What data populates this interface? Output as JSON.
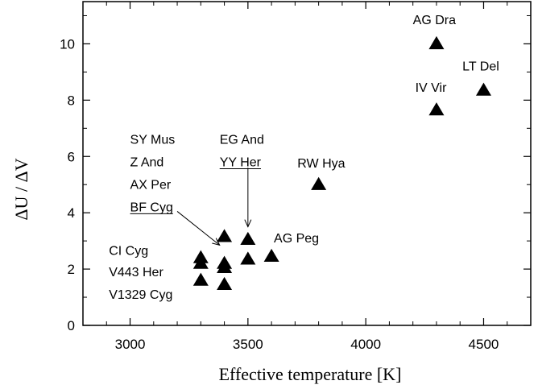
{
  "chart_data": {
    "type": "scatter",
    "title": "",
    "xlabel": "Effective temperature [K]",
    "ylabel": "ΔU / ΔV",
    "xlim": [
      2800,
      4700
    ],
    "ylim": [
      0,
      11.5
    ],
    "x_ticks": [
      3000,
      3500,
      4000,
      4500
    ],
    "y_ticks": [
      0,
      2,
      4,
      6,
      8,
      10
    ],
    "grid": false,
    "legend": "none",
    "marker": "filled-triangle",
    "color": "#000000",
    "points": [
      {
        "x": 3300,
        "y": 2.4
      },
      {
        "x": 3300,
        "y": 2.2
      },
      {
        "x": 3300,
        "y": 1.6
      },
      {
        "x": 3400,
        "y": 3.15
      },
      {
        "x": 3400,
        "y": 2.2
      },
      {
        "x": 3400,
        "y": 2.05
      },
      {
        "x": 3400,
        "y": 1.45
      },
      {
        "x": 3500,
        "y": 3.05
      },
      {
        "x": 3500,
        "y": 2.35
      },
      {
        "x": 3600,
        "y": 2.45
      },
      {
        "x": 3800,
        "y": 5.0
      },
      {
        "x": 4300,
        "y": 10.0
      },
      {
        "x": 4300,
        "y": 7.65
      },
      {
        "x": 4500,
        "y": 8.35
      }
    ],
    "annotations": [
      {
        "id": "ag-dra",
        "text": "AG Dra",
        "x": 4200,
        "y": 10.7
      },
      {
        "id": "lt-del",
        "text": "LT Del",
        "x": 4410,
        "y": 9.05
      },
      {
        "id": "iv-vir",
        "text": "IV Vir",
        "x": 4210,
        "y": 8.3
      },
      {
        "id": "rw-hya",
        "text": "RW Hya",
        "x": 3710,
        "y": 5.6
      },
      {
        "id": "ag-peg",
        "text": "AG Peg",
        "x": 3610,
        "y": 2.95
      },
      {
        "id": "sy-mus",
        "text": "SY Mus",
        "x": 3000,
        "y": 6.45
      },
      {
        "id": "z-and",
        "text": "Z And",
        "x": 3000,
        "y": 5.65
      },
      {
        "id": "ax-per",
        "text": "AX Per",
        "x": 3000,
        "y": 4.85
      },
      {
        "id": "bf-cyg",
        "text": "BF Cyg",
        "x": 3000,
        "y": 4.05,
        "underline": true
      },
      {
        "id": "eg-and",
        "text": "EG And",
        "x": 3380,
        "y": 6.45
      },
      {
        "id": "yy-her",
        "text": "YY Her",
        "x": 3380,
        "y": 5.65,
        "underline": true
      },
      {
        "id": "ci-cyg",
        "text": "CI Cyg",
        "x": 2910,
        "y": 2.5
      },
      {
        "id": "v443-her",
        "text": "V443 Her",
        "x": 2910,
        "y": 1.75
      },
      {
        "id": "v1329-cyg",
        "text": "V1329 Cyg",
        "x": 2910,
        "y": 0.95
      }
    ],
    "arrows": [
      {
        "id": "bf-cyg-arrow",
        "from": [
          3200,
          4.05
        ],
        "to": [
          3380,
          2.85
        ]
      },
      {
        "id": "yy-her-arrow",
        "from": [
          3500,
          5.6
        ],
        "to": [
          3500,
          3.5
        ]
      }
    ]
  }
}
